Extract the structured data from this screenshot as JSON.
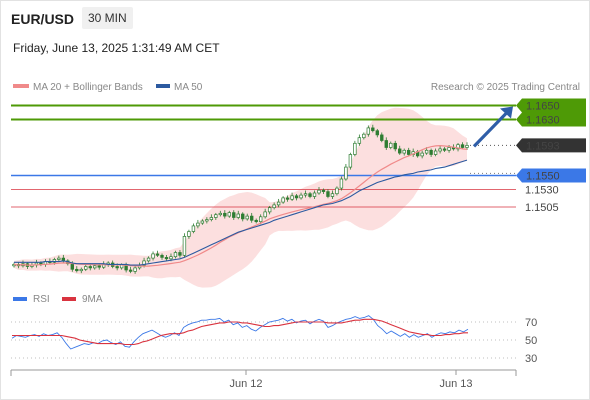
{
  "header": {
    "pair": "EUR/USD",
    "timeframe": "30 MIN",
    "datetime": "Friday, June 13, 2025 1:31:49 AM CET"
  },
  "legend": {
    "ma20": "MA 20 + Bollinger Bands",
    "ma50": "MA 50",
    "credit": "Research © 2025 Trading Central"
  },
  "colors": {
    "ma20": "#f08a8a",
    "band": "#fbd2d2",
    "ma50": "#2c5aa0",
    "green": "#4e9a06",
    "blue": "#3b78e7",
    "red": "#d9333f",
    "candle": "#2e7d32",
    "price_tag": "#333333",
    "arrow": "#2f5ea8"
  },
  "chart_data": {
    "type": "candlestick",
    "ylim": [
      1.14,
      1.168
    ],
    "x_ticks": [
      "Jun 12",
      "Jun 13"
    ],
    "levels": [
      {
        "value": 1.165,
        "label": "1.1650",
        "kind": "resistance"
      },
      {
        "value": 1.163,
        "label": "1.1630",
        "kind": "resistance"
      },
      {
        "value": 1.1593,
        "label": "1.1593",
        "kind": "last_price"
      },
      {
        "value": 1.155,
        "label": "1.1550",
        "kind": "pivot"
      },
      {
        "value": 1.153,
        "label": "1.1530",
        "kind": "support"
      },
      {
        "value": 1.1505,
        "label": "1.1505",
        "kind": "support"
      }
    ],
    "closes": [
      1.1423,
      1.1421,
      1.1424,
      1.142,
      1.1422,
      1.1425,
      1.1423,
      1.1427,
      1.1426,
      1.143,
      1.1432,
      1.1428,
      1.1424,
      1.1416,
      1.1414,
      1.1416,
      1.142,
      1.1418,
      1.1421,
      1.1419,
      1.1423,
      1.1425,
      1.142,
      1.1418,
      1.1422,
      1.1415,
      1.1413,
      1.1418,
      1.1422,
      1.1428,
      1.1432,
      1.1438,
      1.1436,
      1.1433,
      1.1431,
      1.1434,
      1.144,
      1.1436,
      1.1463,
      1.147,
      1.1478,
      1.1482,
      1.1485,
      1.1487,
      1.149,
      1.1494,
      1.1496,
      1.1492,
      1.1497,
      1.149,
      1.1495,
      1.1488,
      1.1492,
      1.1486,
      1.1484,
      1.1491,
      1.1498,
      1.1504,
      1.1508,
      1.1512,
      1.1518,
      1.1516,
      1.1521,
      1.1518,
      1.1522,
      1.1524,
      1.152,
      1.1525,
      1.1529,
      1.1527,
      1.152,
      1.1524,
      1.1532,
      1.1545,
      1.1562,
      1.158,
      1.1596,
      1.1604,
      1.1609,
      1.1618,
      1.1614,
      1.1608,
      1.16,
      1.159,
      1.1596,
      1.1588,
      1.1582,
      1.1586,
      1.158,
      1.1584,
      1.1578,
      1.1582,
      1.1586,
      1.158,
      1.1585,
      1.1588,
      1.1586,
      1.159,
      1.1588,
      1.1594,
      1.159,
      1.1593
    ],
    "ma50": [
      1.1426,
      1.1426,
      1.1426,
      1.1426,
      1.1426,
      1.1426,
      1.1426,
      1.1427,
      1.1427,
      1.1427,
      1.1427,
      1.1428,
      1.1427,
      1.1425,
      1.1424,
      1.1424,
      1.1424,
      1.1424,
      1.1424,
      1.1424,
      1.1424,
      1.1423,
      1.1423,
      1.1423,
      1.1423,
      1.1423,
      1.1422,
      1.1422,
      1.1422,
      1.1423,
      1.1424,
      1.1425,
      1.1426,
      1.1427,
      1.1428,
      1.1429,
      1.143,
      1.1431,
      1.1433,
      1.1436,
      1.1439,
      1.1442,
      1.1445,
      1.1448,
      1.1451,
      1.1454,
      1.1457,
      1.146,
      1.1463,
      1.1466,
      1.1469,
      1.1471,
      1.1473,
      1.1475,
      1.1477,
      1.1479,
      1.1481,
      1.1483,
      1.1486,
      1.1488,
      1.149,
      1.1492,
      1.1494,
      1.1496,
      1.1498,
      1.15,
      1.1502,
      1.1504,
      1.1506,
      1.1508,
      1.1509,
      1.151,
      1.1512,
      1.1514,
      1.1517,
      1.152,
      1.1524,
      1.1528,
      1.1531,
      1.1534,
      1.1537,
      1.154,
      1.1542,
      1.1544,
      1.1546,
      1.1548,
      1.1549,
      1.1551,
      1.1552,
      1.1553,
      1.1555,
      1.1556,
      1.1557,
      1.1558,
      1.156,
      1.1561,
      1.1562,
      1.1564,
      1.1566,
      1.1568,
      1.157,
      1.1572
    ],
    "rsi": [
      52,
      55,
      54,
      53,
      55,
      56,
      54,
      57,
      55,
      56,
      58,
      53,
      46,
      40,
      42,
      44,
      46,
      45,
      47,
      46,
      49,
      50,
      47,
      45,
      48,
      43,
      42,
      48,
      53,
      57,
      59,
      61,
      58,
      55,
      53,
      55,
      58,
      55,
      64,
      67,
      69,
      70,
      72,
      72,
      73,
      73,
      74,
      70,
      72,
      67,
      69,
      64,
      66,
      62,
      60,
      64,
      67,
      70,
      71,
      72,
      74,
      71,
      73,
      69,
      71,
      72,
      68,
      71,
      73,
      71,
      64,
      66,
      69,
      71,
      73,
      74,
      76,
      74,
      75,
      77,
      73,
      66,
      62,
      57,
      60,
      57,
      54,
      57,
      53,
      56,
      53,
      55,
      57,
      53,
      56,
      58,
      57,
      59,
      58,
      61,
      59,
      62
    ],
    "rsi_ma": [
      55,
      55,
      55,
      55,
      55,
      55,
      55,
      55,
      55,
      55,
      55,
      55,
      54,
      53,
      52,
      50,
      49,
      48,
      47,
      46,
      46,
      46,
      46,
      46,
      46,
      45,
      45,
      45,
      46,
      48,
      49,
      51,
      53,
      55,
      56,
      57,
      57,
      57,
      58,
      60,
      61,
      63,
      65,
      66,
      67,
      68,
      69,
      69,
      70,
      70,
      70,
      69,
      69,
      68,
      67,
      66,
      65,
      65,
      66,
      66,
      67,
      68,
      69,
      70,
      70,
      70,
      70,
      70,
      70,
      70,
      69,
      69,
      69,
      69,
      70,
      71,
      72,
      72,
      73,
      73,
      73,
      72,
      71,
      69,
      67,
      65,
      63,
      61,
      59,
      58,
      57,
      56,
      56,
      55,
      55,
      55,
      56,
      56,
      57,
      57,
      58,
      58
    ],
    "rsi_levels": [
      70,
      50,
      30
    ]
  },
  "rsi_legend": {
    "rsi": "RSI",
    "ma": "9MA"
  }
}
